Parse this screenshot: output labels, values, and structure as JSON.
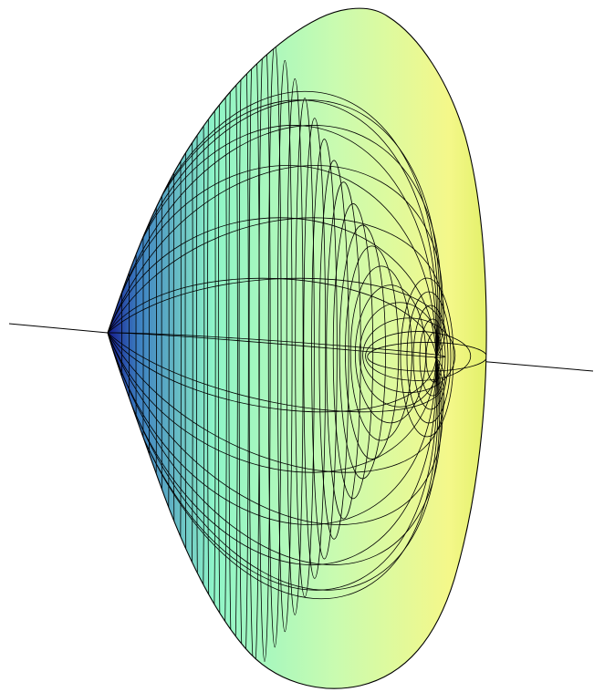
{
  "figure": {
    "type": "3d-surface-of-revolution",
    "style": "polygon-mesh",
    "mesh_color": "#000000",
    "axis_color": "#000000",
    "background": "#ffffff",
    "colors": {
      "left_edge": "#141a8c",
      "left_mid": "#3c7fc2",
      "body_cyan": "#8ff5c8",
      "body_green": "#c9fbb0",
      "right_yellow": "#f4f88a",
      "right_edge": "#e3f06a"
    },
    "meridian_count": 24,
    "latitude_rings": 30
  }
}
